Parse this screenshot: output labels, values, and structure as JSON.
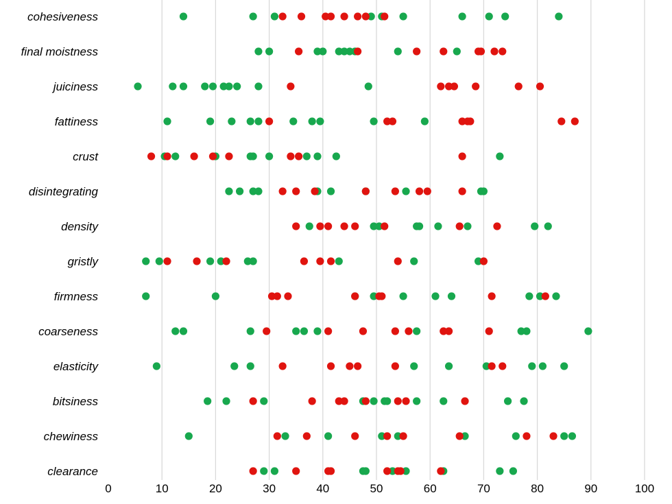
{
  "chart_data": {
    "type": "scatter",
    "title": "",
    "xlabel": "",
    "ylabel": "",
    "xlim": [
      0,
      100
    ],
    "x_ticks": [
      0,
      10,
      20,
      30,
      40,
      50,
      60,
      70,
      80,
      90,
      100
    ],
    "grid": "vertical",
    "legend": "none",
    "categories": [
      "cohesiveness",
      "final moistness",
      "juiciness",
      "fattiness",
      "crust",
      "disintegrating",
      "density",
      "gristly",
      "firmness",
      "coarseness",
      "elasticity",
      "bitsiness",
      "chewiness",
      "clearance"
    ],
    "series": [
      {
        "color": "#18a84e",
        "points": {
          "cohesiveness": [
            14,
            27,
            31,
            49,
            51,
            55,
            66,
            71,
            74,
            84
          ],
          "final moistness": [
            28,
            30,
            39,
            40,
            43,
            44,
            45,
            46,
            54,
            65
          ],
          "juiciness": [
            5.5,
            12,
            14,
            18,
            19.5,
            21.5,
            22.5,
            24,
            28,
            48.5
          ],
          "fattiness": [
            11,
            19,
            23,
            26.5,
            28,
            34.5,
            38,
            39.5,
            49.5,
            59
          ],
          "crust": [
            10.5,
            12.5,
            20,
            26.5,
            27,
            30,
            37,
            39,
            42.5,
            73
          ],
          "disintegrating": [
            22.5,
            24.5,
            27,
            28,
            39,
            41.5,
            48,
            55.5,
            69.5,
            70
          ],
          "density": [
            37.5,
            49.5,
            50.5,
            57.5,
            58,
            61.5,
            67,
            79.5,
            82
          ],
          "gristly": [
            7,
            9.5,
            19,
            21,
            26,
            27,
            43,
            57,
            69
          ],
          "firmness": [
            7,
            20,
            46,
            49.5,
            55,
            61,
            64,
            78.5,
            80.5,
            83.5
          ],
          "coarseness": [
            12.5,
            14,
            26.5,
            35,
            36.5,
            39,
            57.5,
            77,
            78,
            89.5
          ],
          "elasticity": [
            9,
            23.5,
            26.5,
            57,
            63.5,
            70.5,
            79,
            81,
            85
          ],
          "bitsiness": [
            18.5,
            22,
            29,
            47.5,
            49.5,
            51.5,
            52,
            57.5,
            62.5,
            74.5,
            77.5
          ],
          "chewiness": [
            15,
            33,
            41,
            51,
            54,
            66.5,
            76,
            85,
            86.5
          ],
          "clearance": [
            29,
            31,
            47.5,
            48,
            53,
            55.5,
            62.5,
            73,
            75.5
          ]
        }
      },
      {
        "color": "#e0140f",
        "points": {
          "cohesiveness": [
            32.5,
            36,
            40.5,
            41.5,
            44,
            46.5,
            48,
            51.5
          ],
          "final moistness": [
            35.5,
            46.5,
            57.5,
            62.5,
            69,
            69.5,
            72,
            73.5
          ],
          "juiciness": [
            34,
            62,
            63.5,
            64.5,
            68.5,
            76.5,
            80.5
          ],
          "fattiness": [
            30,
            52,
            53,
            66,
            67,
            67.5,
            84.5,
            87
          ],
          "crust": [
            8,
            11,
            16,
            19.5,
            22.5,
            34,
            35.5,
            66
          ],
          "disintegrating": [
            32.5,
            35,
            38.5,
            48,
            53.5,
            58,
            59.5,
            66
          ],
          "density": [
            35,
            39.5,
            41,
            44,
            46,
            51.5,
            65.5,
            72.5
          ],
          "gristly": [
            11,
            16.5,
            22,
            36.5,
            39.5,
            41.5,
            54,
            70
          ],
          "firmness": [
            30.5,
            31.5,
            33.5,
            46,
            50.5,
            51,
            71.5,
            81.5
          ],
          "coarseness": [
            29.5,
            41,
            47.5,
            53.5,
            56,
            62.5,
            63.5,
            71
          ],
          "elasticity": [
            32.5,
            41.5,
            45,
            46.5,
            53.5,
            71.5,
            73.5
          ],
          "bitsiness": [
            27,
            38,
            43,
            44,
            48,
            54,
            55.5,
            66.5
          ],
          "chewiness": [
            31.5,
            37,
            46,
            52,
            55,
            65.5,
            78,
            83
          ],
          "clearance": [
            27,
            35,
            41,
            41.5,
            52,
            54,
            54.5,
            62
          ]
        }
      }
    ]
  }
}
